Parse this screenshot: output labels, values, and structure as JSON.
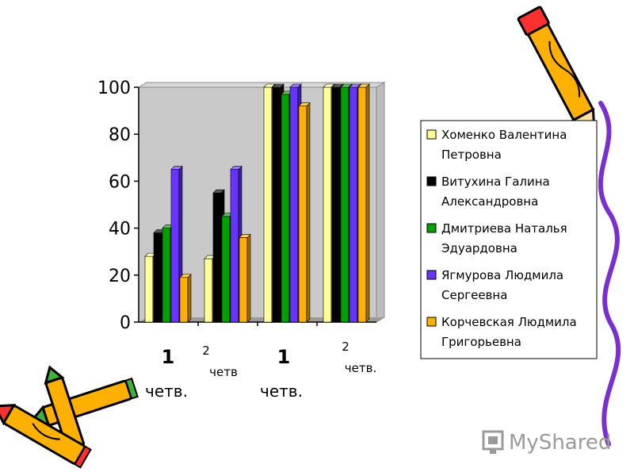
{
  "chart_data": {
    "type": "bar",
    "style": "3d-clustered-column",
    "categories": [
      [
        "1",
        "четв."
      ],
      [
        "2",
        "четв"
      ],
      [
        "1",
        "четв."
      ],
      [
        "2",
        "четв."
      ]
    ],
    "series": [
      {
        "name": "Хоменко Валентина Петровна",
        "color": "#ffff99",
        "values": [
          28,
          27,
          100,
          100
        ]
      },
      {
        "name": "Витухина Галина Александровна",
        "color": "#000000",
        "values": [
          38,
          55,
          100,
          100
        ]
      },
      {
        "name": "Дмитриева Наталья Эдуардовна",
        "color": "#00a000",
        "values": [
          40,
          45,
          97,
          100
        ]
      },
      {
        "name": "Ягмурова Людмила Сергеевна",
        "color": "#6633ff",
        "values": [
          65,
          65,
          100,
          100
        ]
      },
      {
        "name": "Корчевская Людмила Григорьевна",
        "color": "#ffb000",
        "values": [
          19,
          36,
          92,
          100
        ]
      }
    ],
    "yticks": [
      "0",
      "20",
      "40",
      "60",
      "80",
      "100"
    ],
    "ylim": [
      0,
      100
    ],
    "legend_position": "right",
    "grid": false
  },
  "decor": {
    "watermark": "MyShared",
    "icons": [
      "pencil-icon",
      "crayons-icon",
      "myshared-logo-icon"
    ],
    "ribbon_color": "#7a2fd0"
  }
}
